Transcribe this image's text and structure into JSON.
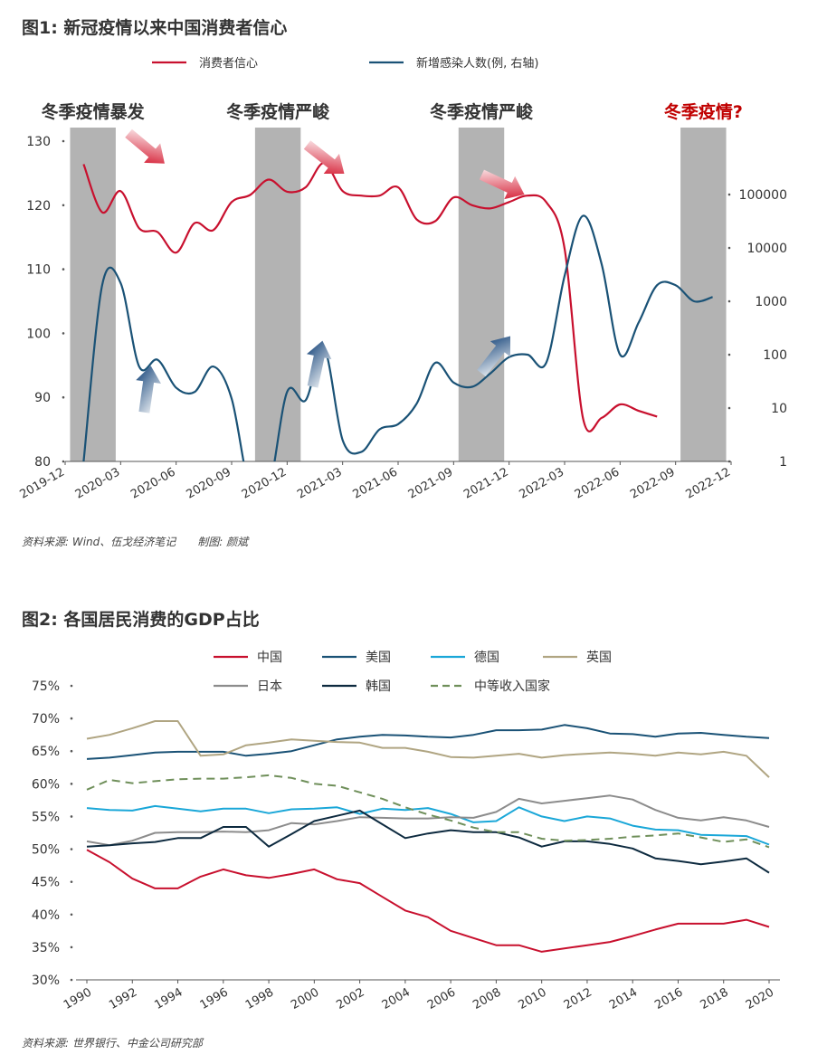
{
  "figure1": {
    "title": "图1: 新冠疫情以来中国消费者信心",
    "source": "资料来源: Wind、伍戈经济笔记　　制图: 颜斌"
  },
  "figure2": {
    "title": "图2: 各国居民消费的GDP占比",
    "source": "资料来源: 世界银行、中金公司研究部"
  },
  "chart_data": [
    {
      "type": "line",
      "legend_position": "top",
      "y_left": {
        "range": [
          80,
          130
        ],
        "ticks": [
          80,
          90,
          100,
          110,
          120,
          130
        ]
      },
      "y_right": {
        "scale": "log",
        "range": [
          1,
          1000000
        ],
        "ticks": [
          1,
          10,
          100,
          1000,
          10000,
          100000
        ],
        "tick_labels": [
          "1",
          "10",
          "100",
          "1000",
          "10000",
          "100000"
        ]
      },
      "x_ticks": [
        "2019-12",
        "2020-03",
        "2020-06",
        "2020-09",
        "2020-12",
        "2021-03",
        "2021-06",
        "2021-09",
        "2021-12",
        "2022-03",
        "2022-06",
        "2022-09",
        "2022-12"
      ],
      "shaded_periods": [
        {
          "label": "冬季疫情暴发",
          "start": "2020-01",
          "end": "2020-02",
          "label_color": "#333333"
        },
        {
          "label": "冬季疫情严峻",
          "start": "2020-11",
          "end": "2020-12",
          "label_color": "#333333"
        },
        {
          "label": "冬季疫情严峻",
          "start": "2021-10",
          "end": "2021-11",
          "label_color": "#333333"
        },
        {
          "label": "冬季疫情?",
          "start": "2022-10",
          "end": "2022-11",
          "label_color": "#c00000"
        }
      ],
      "series": [
        {
          "name": "消费者信心",
          "axis": "left",
          "color": "#c8102e",
          "points": [
            [
              "2020-01",
              126.4
            ],
            [
              "2020-02",
              118.9
            ],
            [
              "2020-03",
              122.2
            ],
            [
              "2020-04",
              116.4
            ],
            [
              "2020-05",
              115.8
            ],
            [
              "2020-06",
              112.6
            ],
            [
              "2020-07",
              117.2
            ],
            [
              "2020-08",
              116.1
            ],
            [
              "2020-09",
              120.5
            ],
            [
              "2020-10",
              121.6
            ],
            [
              "2020-11",
              124.0
            ],
            [
              "2020-12",
              122.1
            ],
            [
              "2021-01",
              122.8
            ],
            [
              "2021-02",
              126.6
            ],
            [
              "2021-03",
              122.2
            ],
            [
              "2021-04",
              121.5
            ],
            [
              "2021-05",
              121.5
            ],
            [
              "2021-06",
              122.8
            ],
            [
              "2021-07",
              117.8
            ],
            [
              "2021-08",
              117.5
            ],
            [
              "2021-09",
              121.2
            ],
            [
              "2021-10",
              120.0
            ],
            [
              "2021-11",
              119.5
            ],
            [
              "2021-12",
              120.5
            ],
            [
              "2022-01",
              121.5
            ],
            [
              "2022-02",
              120.5
            ],
            [
              "2022-03",
              113.2
            ],
            [
              "2022-04",
              86.7
            ],
            [
              "2022-05",
              86.8
            ],
            [
              "2022-06",
              88.9
            ],
            [
              "2022-07",
              87.9
            ],
            [
              "2022-08",
              87.0
            ]
          ]
        },
        {
          "name": "新增感染人数(例, 右轴)",
          "axis": "right",
          "color": "#1a5276",
          "points": [
            [
              "2020-01",
              1.0
            ],
            [
              "2020-02",
              2000
            ],
            [
              "2020-03",
              2200
            ],
            [
              "2020-04",
              60
            ],
            [
              "2020-05",
              80
            ],
            [
              "2020-06",
              24
            ],
            [
              "2020-07",
              20
            ],
            [
              "2020-08",
              60
            ],
            [
              "2020-09",
              15
            ],
            [
              "2020-10",
              0.3
            ],
            [
              "2020-11",
              0.3
            ],
            [
              "2020-12",
              20
            ],
            [
              "2021-01",
              14
            ],
            [
              "2021-02",
              130
            ],
            [
              "2021-03",
              2.5
            ],
            [
              "2021-04",
              1.5
            ],
            [
              "2021-05",
              4
            ],
            [
              "2021-06",
              5
            ],
            [
              "2021-07",
              12
            ],
            [
              "2021-08",
              70
            ],
            [
              "2021-09",
              30
            ],
            [
              "2021-10",
              25
            ],
            [
              "2021-11",
              45
            ],
            [
              "2021-12",
              90
            ],
            [
              "2022-01",
              100
            ],
            [
              "2022-02",
              70
            ],
            [
              "2022-03",
              3000
            ],
            [
              "2022-04",
              40000
            ],
            [
              "2022-05",
              5000
            ],
            [
              "2022-06",
              100
            ],
            [
              "2022-07",
              400
            ],
            [
              "2022-08",
              2000
            ],
            [
              "2022-09",
              2000
            ],
            [
              "2022-10",
              1000
            ],
            [
              "2022-11",
              1200
            ]
          ]
        }
      ]
    },
    {
      "type": "line",
      "legend_position": "top",
      "x_range": [
        1990,
        2020
      ],
      "x_ticks": [
        1990,
        1992,
        1994,
        1996,
        1998,
        2000,
        2002,
        2004,
        2006,
        2008,
        2010,
        2012,
        2014,
        2016,
        2018,
        2020
      ],
      "y_range": [
        30,
        75
      ],
      "y_ticks": [
        30,
        35,
        40,
        45,
        50,
        55,
        60,
        65,
        70,
        75
      ],
      "y_tick_labels": [
        "30%",
        "35%",
        "40%",
        "45%",
        "50%",
        "55%",
        "60%",
        "65%",
        "70%",
        "75%"
      ],
      "series": [
        {
          "name": "中国",
          "color": "#c8102e",
          "dash": false,
          "values": [
            49.9,
            48.0,
            45.5,
            44.0,
            44.0,
            45.8,
            46.9,
            46.0,
            45.6,
            46.2,
            46.9,
            45.4,
            44.8,
            42.7,
            40.6,
            39.6,
            37.5,
            36.4,
            35.3,
            35.3,
            34.3,
            34.8,
            35.3,
            35.8,
            36.7,
            37.7,
            38.6,
            38.6,
            38.6,
            39.2,
            38.1
          ]
        },
        {
          "name": "美国",
          "color": "#1a5276",
          "dash": false,
          "values": [
            63.8,
            64.0,
            64.4,
            64.8,
            64.9,
            64.9,
            64.9,
            64.3,
            64.6,
            65.0,
            65.9,
            66.8,
            67.2,
            67.5,
            67.4,
            67.2,
            67.1,
            67.5,
            68.2,
            68.2,
            68.3,
            69.0,
            68.5,
            67.7,
            67.6,
            67.2,
            67.7,
            67.8,
            67.5,
            67.2,
            67.0
          ]
        },
        {
          "name": "德国",
          "color": "#1aa7d8",
          "dash": false,
          "values": [
            56.3,
            56.0,
            55.9,
            56.6,
            56.2,
            55.8,
            56.2,
            56.2,
            55.5,
            56.1,
            56.2,
            56.4,
            55.4,
            56.2,
            56.0,
            56.3,
            55.4,
            54.1,
            54.3,
            56.4,
            55.0,
            54.3,
            55.0,
            54.7,
            53.6,
            53.0,
            52.9,
            52.2,
            52.1,
            52.0,
            50.7
          ]
        },
        {
          "name": "英国",
          "color": "#b0a582",
          "dash": false,
          "values": [
            66.9,
            67.5,
            68.5,
            69.6,
            69.6,
            64.3,
            64.5,
            65.9,
            66.3,
            66.8,
            66.6,
            66.4,
            66.3,
            65.5,
            65.5,
            64.9,
            64.1,
            64.0,
            64.3,
            64.6,
            64.0,
            64.4,
            64.6,
            64.8,
            64.6,
            64.3,
            64.8,
            64.5,
            64.9,
            64.3,
            61.0
          ]
        },
        {
          "name": "日本",
          "color": "#8c8c8c",
          "dash": false,
          "values": [
            51.2,
            50.6,
            51.3,
            52.5,
            52.6,
            52.6,
            52.7,
            52.6,
            52.9,
            54.0,
            53.8,
            54.3,
            54.9,
            54.8,
            54.7,
            54.7,
            54.9,
            54.8,
            55.7,
            57.7,
            57.0,
            57.4,
            57.8,
            58.2,
            57.6,
            56.0,
            54.8,
            54.4,
            54.9,
            54.4,
            53.4
          ]
        },
        {
          "name": "韩国",
          "color": "#0d2a3f",
          "dash": false,
          "values": [
            50.4,
            50.6,
            50.9,
            51.1,
            51.7,
            51.7,
            53.4,
            53.4,
            50.4,
            52.3,
            54.3,
            55.1,
            55.9,
            53.8,
            51.7,
            52.4,
            52.9,
            52.6,
            52.6,
            51.8,
            50.4,
            51.2,
            51.2,
            50.8,
            50.1,
            48.6,
            48.2,
            47.7,
            48.1,
            48.6,
            46.4
          ]
        },
        {
          "name": "中等收入国家",
          "color": "#6f8f5a",
          "dash": true,
          "values": [
            59.1,
            60.6,
            60.1,
            60.4,
            60.7,
            60.8,
            60.8,
            61.0,
            61.3,
            60.9,
            60.0,
            59.7,
            58.7,
            57.7,
            56.4,
            55.3,
            54.4,
            53.3,
            52.6,
            52.6,
            51.6,
            51.3,
            51.4,
            51.6,
            51.9,
            52.1,
            52.4,
            51.8,
            51.1,
            51.5,
            50.3
          ]
        }
      ]
    }
  ]
}
